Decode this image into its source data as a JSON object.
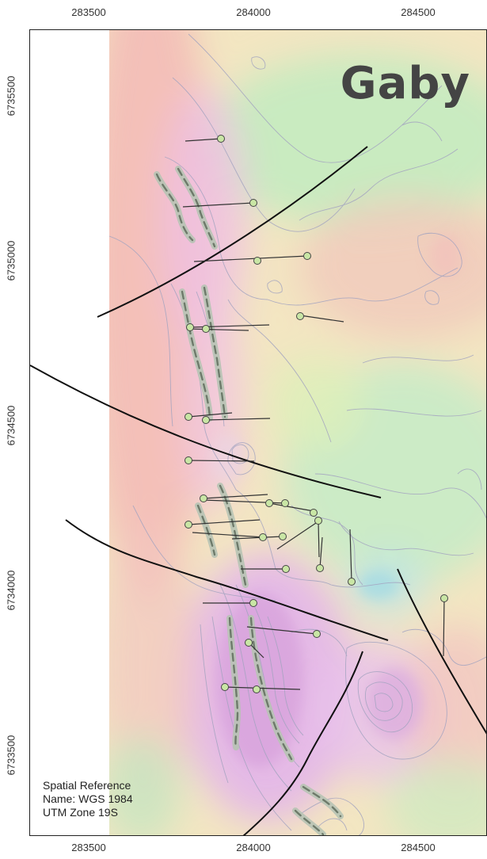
{
  "map": {
    "title": "Gaby",
    "x_ticks": [
      "283500",
      "284000",
      "284500"
    ],
    "y_ticks": [
      "6735500",
      "6735000",
      "6734500",
      "6734000",
      "6733500"
    ],
    "spatial_reference": {
      "line1": "Spatial Reference",
      "line2": "Name: WGS 1984",
      "line3": "UTM Zone 19S"
    },
    "colors": {
      "fault_line": "#111111",
      "drillhole_collar": "#c9e6a5",
      "target_axis": "#6d7a6a",
      "target_halo": "#b7c4b4",
      "contour": "#a4a4c0",
      "magnetic_high": "#e9b9ea",
      "magnetic_mid": "#f5e4b0",
      "magnetic_low": "#bfe7bf"
    }
  }
}
